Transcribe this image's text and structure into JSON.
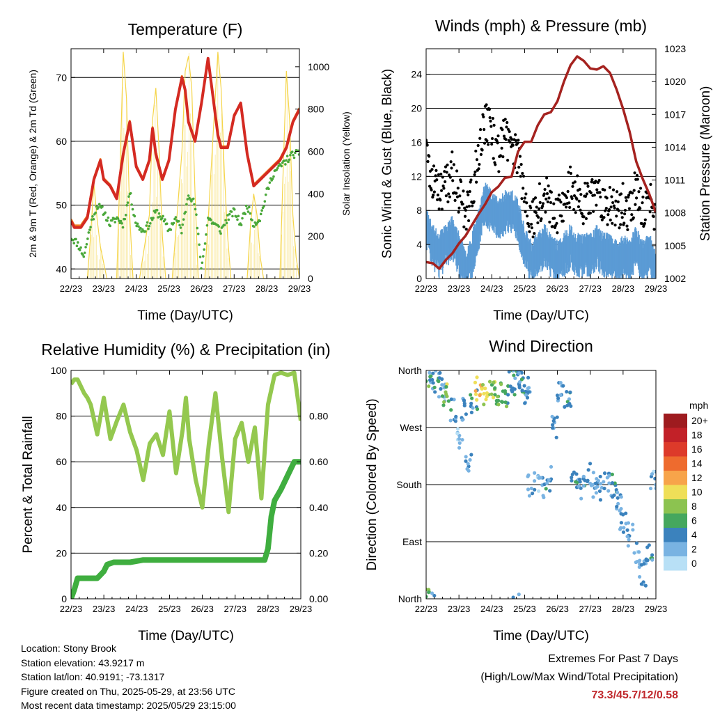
{
  "x_ticks": [
    "22/23",
    "23/23",
    "24/23",
    "25/23",
    "26/23",
    "27/23",
    "28/23",
    "29/23"
  ],
  "chart_data": [
    {
      "type": "line",
      "title": "Temperature (F)",
      "xlabel": "Time (Day/UTC)",
      "ylabel": "2m & 9m T (Red, Orange) & 2m Td (Green)",
      "y2label": "Solar Insolation (Yellow)",
      "ylim": [
        38.5,
        74.5
      ],
      "y_ticks": [
        40,
        50,
        60,
        70
      ],
      "y2lim": [
        0,
        1085
      ],
      "y2_ticks": [
        0,
        200,
        400,
        600,
        800,
        1000
      ],
      "series": [
        {
          "name": "2m T",
          "color": "#d42a22",
          "axis": "left",
          "x": [
            0,
            0.1,
            0.3,
            0.5,
            0.7,
            0.9,
            1.0,
            1.2,
            1.4,
            1.6,
            1.8,
            2.0,
            2.2,
            2.4,
            2.5,
            2.6,
            2.8,
            3.0,
            3.2,
            3.4,
            3.5,
            3.6,
            3.8,
            4.0,
            4.2,
            4.4,
            4.5,
            4.6,
            4.8,
            5.0,
            5.2,
            5.4,
            5.6,
            5.8,
            6.0,
            6.2,
            6.4,
            6.6,
            6.8,
            7.0
          ],
          "values": [
            47.5,
            46.5,
            46.5,
            48,
            54,
            57,
            54,
            53,
            51,
            58,
            63,
            56,
            54,
            57,
            62,
            58,
            54,
            57,
            65,
            70,
            68,
            63,
            60,
            66,
            73,
            65,
            61,
            59,
            59,
            64,
            66,
            58,
            53,
            54,
            55,
            56,
            57,
            59,
            63,
            65
          ]
        },
        {
          "name": "9m T",
          "color": "#f07c22",
          "axis": "left",
          "x": [
            0,
            0.1,
            0.3,
            0.5,
            0.7,
            0.9,
            1.0,
            1.2,
            1.4,
            1.6,
            1.8,
            2.0,
            2.2,
            2.4,
            2.5,
            2.6,
            2.8,
            3.0,
            3.2,
            3.4,
            3.5,
            3.6,
            3.8,
            4.0,
            4.2,
            4.4,
            4.5,
            4.6,
            4.8,
            5.0,
            5.2,
            5.4,
            5.6,
            5.8,
            6.0,
            6.2,
            6.4,
            6.6,
            6.8,
            7.0
          ],
          "values": [
            47.8,
            46.8,
            46.8,
            48.3,
            54.2,
            57.2,
            54.2,
            53.2,
            51.2,
            58.2,
            63.2,
            56.2,
            54.2,
            57.2,
            62.2,
            58.2,
            54.2,
            57.2,
            65.2,
            70.2,
            68.2,
            63.2,
            60.2,
            66.2,
            72.8,
            65.2,
            61.2,
            59.2,
            59.2,
            64.2,
            65.8,
            58.2,
            53.2,
            54.2,
            55.2,
            56.2,
            57.2,
            59.2,
            63.2,
            65.2
          ]
        },
        {
          "name": "2m Td",
          "color": "#4aa83a",
          "axis": "left",
          "x": [
            0,
            0.2,
            0.4,
            0.6,
            0.8,
            1.0,
            1.2,
            1.4,
            1.6,
            1.8,
            2.0,
            2.2,
            2.4,
            2.6,
            2.8,
            3.0,
            3.2,
            3.4,
            3.6,
            3.8,
            4.0,
            4.2,
            4.4,
            4.6,
            4.8,
            5.0,
            5.2,
            5.4,
            5.6,
            5.8,
            6.0,
            6.2,
            6.4,
            6.6,
            6.8,
            7.0
          ],
          "values": [
            45,
            44,
            42,
            47,
            50,
            49,
            47,
            48,
            47,
            52,
            47,
            46,
            47,
            49,
            48,
            46,
            48,
            46,
            52,
            50,
            40,
            48,
            47,
            46,
            48,
            49,
            47,
            50,
            47,
            48,
            52,
            55,
            56,
            57,
            58,
            58
          ]
        },
        {
          "name": "Solar Insolation",
          "color": "#f5d54a",
          "axis": "right",
          "x": [
            0.5,
            0.6,
            0.7,
            0.8,
            0.9,
            1.1,
            1.4,
            1.5,
            1.6,
            1.7,
            1.8,
            1.9,
            2.1,
            2.4,
            2.5,
            2.6,
            2.7,
            2.8,
            2.9,
            3.1,
            3.4,
            3.5,
            3.6,
            3.7,
            3.8,
            3.9,
            4.1,
            4.4,
            4.5,
            4.6,
            4.7,
            4.8,
            4.9,
            5.1,
            5.4,
            5.5,
            5.6,
            5.7,
            5.8,
            5.9,
            6.1,
            6.4,
            6.5,
            6.6,
            6.7,
            6.8,
            6.9,
            7.0
          ],
          "values": [
            0,
            200,
            450,
            280,
            150,
            0,
            0,
            500,
            1070,
            850,
            300,
            0,
            0,
            300,
            750,
            900,
            600,
            200,
            0,
            0,
            600,
            980,
            1050,
            900,
            400,
            0,
            0,
            800,
            1070,
            900,
            500,
            200,
            0,
            0,
            0,
            250,
            400,
            300,
            100,
            0,
            0,
            0,
            500,
            980,
            750,
            300,
            100,
            0
          ]
        }
      ]
    },
    {
      "type": "scatter",
      "title": "Winds (mph) & Pressure (mb)",
      "xlabel": "Time (Day/UTC)",
      "ylabel": "Sonic Wind & Gust (Blue, Black)",
      "y2label": "Station Pressure (Maroon)",
      "ylim": [
        0,
        27
      ],
      "y_ticks": [
        0,
        4,
        8,
        12,
        16,
        20,
        24
      ],
      "y2lim": [
        1002,
        1023
      ],
      "y2_ticks": [
        1002,
        1005,
        1008,
        1011,
        1014,
        1017,
        1020,
        1023
      ],
      "series": [
        {
          "name": "Sonic Wind",
          "color": "#5b9bd5",
          "axis": "left",
          "x": [
            0,
            0.2,
            0.4,
            0.6,
            0.8,
            1.0,
            1.2,
            1.4,
            1.6,
            1.8,
            2.0,
            2.2,
            2.4,
            2.6,
            2.8,
            3.0,
            3.2,
            3.4,
            3.6,
            3.8,
            4.0,
            4.2,
            4.4,
            4.6,
            4.8,
            5.0,
            5.2,
            5.4,
            5.6,
            5.8,
            6.0,
            6.2,
            6.4,
            6.6,
            6.8,
            7.0
          ],
          "values": [
            7,
            5,
            4,
            5,
            6,
            4,
            2,
            4,
            7,
            10,
            9,
            8,
            9,
            9,
            8,
            5,
            3,
            4,
            5,
            4,
            3,
            4,
            5,
            4,
            4,
            4,
            5,
            4,
            4,
            3,
            4,
            3,
            5,
            3,
            4,
            2
          ]
        },
        {
          "name": "Gust",
          "color": "#000000",
          "axis": "left",
          "x": [
            0,
            0.2,
            0.4,
            0.6,
            0.8,
            1.0,
            1.2,
            1.4,
            1.6,
            1.8,
            2.0,
            2.2,
            2.4,
            2.6,
            2.8,
            3.0,
            3.2,
            3.4,
            3.6,
            3.8,
            4.0,
            4.2,
            4.4,
            4.6,
            4.8,
            5.0,
            5.2,
            5.4,
            5.6,
            5.8,
            6.0,
            6.2,
            6.4,
            6.6,
            6.8,
            7.0
          ],
          "values": [
            14,
            11,
            9,
            10,
            12,
            9,
            7,
            9,
            14,
            18,
            16,
            14,
            16,
            15,
            14,
            9,
            6,
            8,
            9,
            8,
            7,
            8,
            10,
            9,
            8,
            8,
            10,
            8,
            8,
            7,
            8,
            7,
            10,
            7,
            9,
            6
          ]
        },
        {
          "name": "Station Pressure",
          "color": "#a5221f",
          "axis": "right",
          "x": [
            0,
            0.2,
            0.4,
            0.6,
            0.8,
            1.0,
            1.2,
            1.4,
            1.6,
            1.8,
            2.0,
            2.2,
            2.4,
            2.6,
            2.8,
            3.0,
            3.2,
            3.4,
            3.6,
            3.8,
            4.0,
            4.2,
            4.4,
            4.6,
            4.8,
            5.0,
            5.2,
            5.4,
            5.6,
            5.8,
            6.0,
            6.2,
            6.4,
            6.6,
            6.8,
            7.0
          ],
          "values": [
            1003.5,
            1003.4,
            1002.9,
            1003.7,
            1004.3,
            1005.2,
            1005.9,
            1006.9,
            1007.9,
            1008.8,
            1009.9,
            1010.4,
            1011.2,
            1011.3,
            1013.6,
            1014.5,
            1014.5,
            1016.0,
            1017.0,
            1017.2,
            1018.2,
            1020.0,
            1021.5,
            1022.3,
            1021.9,
            1021.2,
            1021.1,
            1021.4,
            1020.8,
            1019.3,
            1017.5,
            1015.4,
            1012.7,
            1011.1,
            1009.7,
            1008.0
          ]
        }
      ]
    },
    {
      "type": "line",
      "title": "Relative Humidity (%) & Precipitation (in)",
      "xlabel": "Time (Day/UTC)",
      "ylabel": "Percent & Total Rainfall",
      "ylim": [
        0,
        100
      ],
      "y_ticks": [
        0,
        20,
        40,
        60,
        80,
        100
      ],
      "y2lim": [
        0,
        1.0
      ],
      "y2_ticks": [
        "0.00",
        "0.20",
        "0.40",
        "0.60",
        "0.80"
      ],
      "series": [
        {
          "name": "Relative Humidity",
          "color": "#94c84f",
          "axis": "left",
          "x": [
            0,
            0.1,
            0.2,
            0.4,
            0.5,
            0.6,
            0.8,
            1.0,
            1.2,
            1.4,
            1.6,
            1.8,
            2.0,
            2.2,
            2.4,
            2.6,
            2.8,
            3.0,
            3.2,
            3.4,
            3.5,
            3.6,
            3.8,
            4.0,
            4.2,
            4.4,
            4.6,
            4.8,
            5.0,
            5.2,
            5.4,
            5.6,
            5.8,
            6.0,
            6.2,
            6.4,
            6.6,
            6.8,
            7.0
          ],
          "values": [
            94,
            96,
            96,
            90,
            88,
            85,
            72,
            88,
            70,
            78,
            85,
            73,
            65,
            52,
            68,
            72,
            63,
            82,
            55,
            74,
            88,
            70,
            52,
            40,
            68,
            90,
            62,
            38,
            70,
            77,
            60,
            75,
            44,
            85,
            98,
            99,
            98,
            99,
            78
          ]
        },
        {
          "name": "Total Precipitation",
          "color": "#3fae3f",
          "axis": "right",
          "x": [
            0,
            0.1,
            0.2,
            0.5,
            0.8,
            1.0,
            1.1,
            1.3,
            1.5,
            1.8,
            2.2,
            3.0,
            4.0,
            5.0,
            5.9,
            6.0,
            6.1,
            6.2,
            6.4,
            6.6,
            6.8,
            7.0
          ],
          "values": [
            0,
            0.04,
            0.09,
            0.09,
            0.09,
            0.12,
            0.15,
            0.16,
            0.16,
            0.16,
            0.17,
            0.17,
            0.17,
            0.17,
            0.17,
            0.22,
            0.36,
            0.43,
            0.48,
            0.54,
            0.6,
            0.6
          ]
        }
      ]
    },
    {
      "type": "scatter",
      "title": "Wind Direction",
      "xlabel": "Time (Day/UTC)",
      "ylabel": "Direction (Colored By Speed)",
      "ylim": [
        0,
        360
      ],
      "y_tick_labels": [
        "North",
        "East",
        "South",
        "West",
        "North"
      ],
      "y_tick_values": [
        0,
        90,
        180,
        270,
        360
      ],
      "colorbar": {
        "unit": "mph",
        "labels": [
          "20+",
          "18",
          "16",
          "14",
          "12",
          "10",
          "8",
          "6",
          "4",
          "2",
          "0"
        ],
        "colors": [
          "#9e1b1f",
          "#c22128",
          "#dd3a2a",
          "#ee6b2e",
          "#f7a44a",
          "#efdf58",
          "#8cc350",
          "#45a75e",
          "#3b82bd",
          "#79b3e2",
          "#b8e0f6"
        ]
      },
      "series": [
        {
          "name": "Wind Direction",
          "x": [
            0.05,
            0.2,
            0.35,
            0.5,
            0.6,
            0.8,
            1.0,
            1.15,
            1.3,
            1.45,
            1.6,
            1.8,
            2.0,
            2.2,
            2.4,
            2.6,
            2.75,
            2.85,
            3.0,
            3.1,
            3.2,
            3.5,
            3.7,
            3.9,
            4.1,
            4.3,
            4.5,
            4.7,
            4.9,
            5.1,
            5.3,
            5.5,
            5.7,
            5.9,
            6.0,
            6.2,
            6.4,
            6.6,
            6.8,
            6.95
          ],
          "values": [
            355,
            350,
            345,
            330,
            320,
            295,
            255,
            300,
            210,
            310,
            330,
            320,
            335,
            325,
            320,
            340,
            345,
            350,
            330,
            320,
            180,
            175,
            190,
            270,
            330,
            310,
            190,
            175,
            195,
            180,
            175,
            178,
            180,
            150,
            125,
            100,
            70,
            40,
            65,
            190
          ],
          "speeds": [
            6,
            3,
            4,
            3,
            8,
            4,
            2,
            4,
            3,
            4,
            11,
            9,
            8,
            7,
            6,
            5,
            4,
            3,
            4,
            3,
            3,
            2,
            4,
            3,
            3,
            4,
            4,
            3,
            4,
            2,
            3,
            3,
            4,
            3,
            4,
            3,
            2,
            3,
            4,
            2
          ]
        }
      ]
    }
  ],
  "info": {
    "location": "Location: Stony Brook",
    "elevation": "Station elevation: 43.9217 m",
    "latlon": "Station lat/lon: 40.9191; -73.1317",
    "created": "Figure created on Thu, 2025-05-29, at 23:56 UTC",
    "recent": "Most recent data timestamp: 2025/05/29 23:15:00"
  },
  "extremes": {
    "line1": "Extremes For Past 7 Days",
    "line2": "(High/Low/Max Wind/Total Precipitation)",
    "values": "73.3/45.7/12/0.58"
  }
}
